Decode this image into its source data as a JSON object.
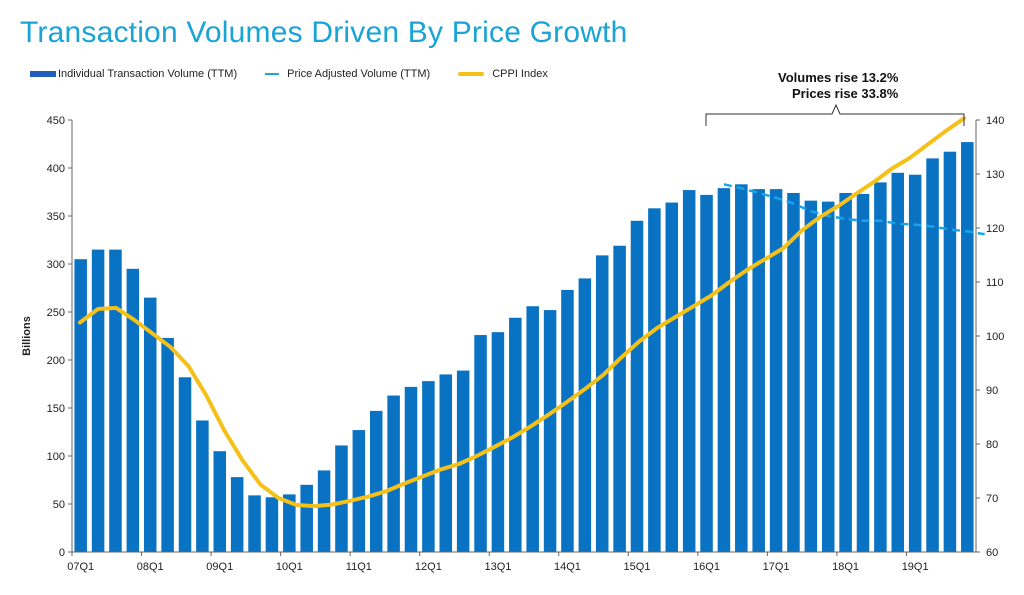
{
  "chart_data": {
    "type": "bar",
    "title": "Transaction Volumes Driven By Price Growth",
    "ylabel": "Billions",
    "ylim": [
      0,
      450
    ],
    "y_ticks": [
      0,
      50,
      100,
      150,
      200,
      250,
      300,
      350,
      400,
      450
    ],
    "y2lim": [
      60,
      140
    ],
    "y2_ticks": [
      60,
      70,
      80,
      90,
      100,
      110,
      120,
      130,
      140
    ],
    "legend_position": "top-left",
    "grid": false,
    "x_tick_labels": [
      "07Q1",
      "08Q1",
      "09Q1",
      "10Q1",
      "11Q1",
      "12Q1",
      "13Q1",
      "14Q1",
      "15Q1",
      "16Q1",
      "17Q1",
      "18Q1",
      "19Q1"
    ],
    "colors": {
      "bars": "#0a72c3",
      "price_adjusted": "#1aa3e8",
      "cppi": "#f5c018",
      "title": "#1aa3d6"
    },
    "series": [
      {
        "name": "Individual Transaction Volume (TTM)",
        "kind": "bar",
        "axis": "left",
        "values": [
          305,
          315,
          315,
          295,
          265,
          223,
          182,
          137,
          105,
          78,
          59,
          57,
          60,
          70,
          85,
          111,
          127,
          147,
          163,
          172,
          178,
          185,
          189,
          226,
          229,
          244,
          256,
          252,
          273,
          285,
          309,
          319,
          345,
          358,
          364,
          377,
          372,
          379,
          383,
          378,
          378,
          374,
          366,
          365,
          374,
          373,
          385,
          395,
          393,
          410,
          417,
          427
        ]
      },
      {
        "name": "Price Adjusted Volume (TTM)",
        "kind": "line",
        "axis": "left",
        "start_index": 37,
        "values": [
          383,
          379,
          374,
          369,
          363,
          355,
          350,
          347,
          345,
          345,
          342,
          341,
          339,
          336,
          334,
          331
        ]
      },
      {
        "name": "CPPI Index",
        "kind": "line",
        "axis": "right",
        "values": [
          102.5,
          105.0,
          105.2,
          103.0,
          100.5,
          98.0,
          94.5,
          89.0,
          82.5,
          77.0,
          72.5,
          70.0,
          68.7,
          68.5,
          68.8,
          69.5,
          70.3,
          71.3,
          72.7,
          74.0,
          75.3,
          76.3,
          77.8,
          79.5,
          81.3,
          83.3,
          85.5,
          87.8,
          90.2,
          92.8,
          96.0,
          99.0,
          101.5,
          103.5,
          105.5,
          107.5,
          110.0,
          112.3,
          114.3,
          116.3,
          119.5,
          122.0,
          124.0,
          126.3,
          128.5,
          131.0,
          133.0,
          135.5,
          138.0,
          140.3
        ]
      }
    ]
  },
  "legend": {
    "bar_label": "Individual Transaction Volume (TTM)",
    "price_adjusted_label": "Price Adjusted Volume (TTM)",
    "cppi_label": "CPPI Index"
  },
  "annotation": {
    "line1": "Volumes rise 13.2%",
    "line2": "Prices rise 33.8%"
  }
}
